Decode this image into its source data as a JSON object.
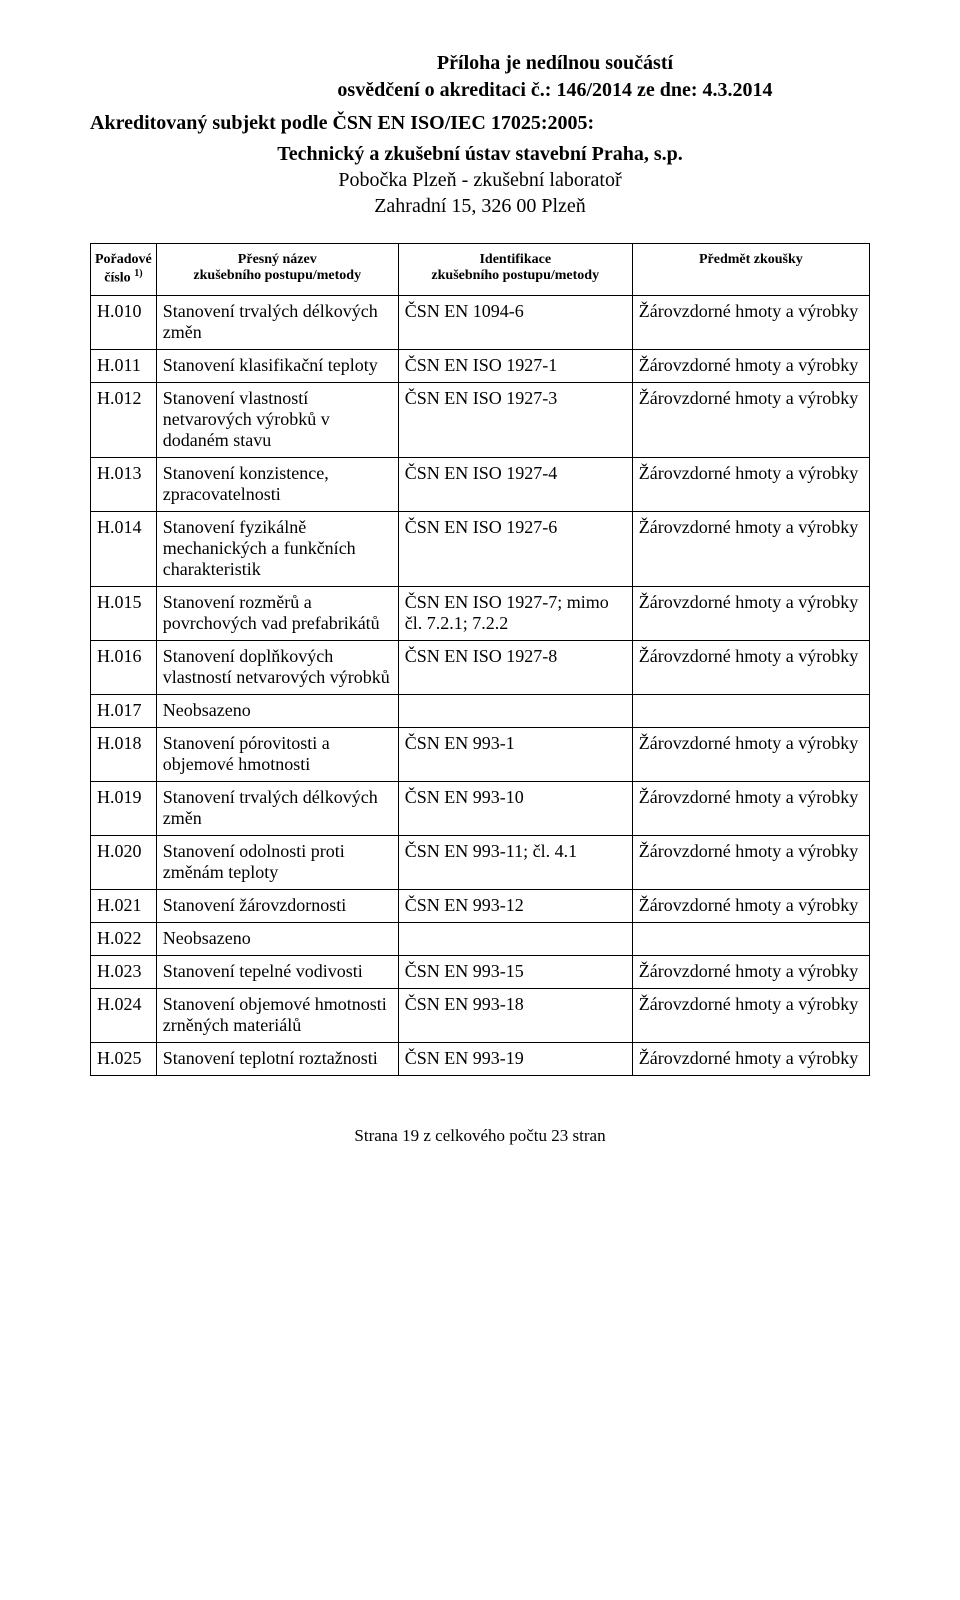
{
  "header": {
    "line1": "Příloha je nedílnou součástí",
    "line2": "osvědčení o akreditaci č.: 146/2014  ze dne: 4.3.2014"
  },
  "accredited_subject": "Akreditovaný subjekt podle ČSN EN ISO/IEC 17025:2005:",
  "sub_header": {
    "line1": "Technický a zkušební ústav stavební Praha, s.p.",
    "line2": "Pobočka Plzeň - zkušební laboratoř",
    "line3": "Zahradní 15, 326 00 Plzeň"
  },
  "columns": {
    "c1a": "Pořadové",
    "c1b": "číslo",
    "c1sup": "1)",
    "c2a": "Přesný název",
    "c2b": "zkušebního postupu/metody",
    "c3a": "Identifikace",
    "c3b": "zkušebního postupu/metody",
    "c4": "Předmět zkoušky"
  },
  "rows": [
    {
      "num": "H.010",
      "name": "Stanovení trvalých délkových změn",
      "ident": "ČSN EN 1094-6",
      "subject": "Žárovzdorné hmoty a výrobky"
    },
    {
      "num": "H.011",
      "name": "Stanovení klasifikační teploty",
      "ident": "ČSN EN ISO 1927-1",
      "subject": "Žárovzdorné hmoty a výrobky"
    },
    {
      "num": "H.012",
      "name": "Stanovení vlastností netvarových výrobků v dodaném stavu",
      "ident": "ČSN EN ISO 1927-3",
      "subject": "Žárovzdorné hmoty a výrobky"
    },
    {
      "num": "H.013",
      "name": "Stanovení konzistence, zpracovatelnosti",
      "ident": "ČSN EN ISO 1927-4",
      "subject": "Žárovzdorné hmoty a výrobky"
    },
    {
      "num": "H.014",
      "name": "Stanovení fyzikálně mechanických a funkčních charakteristik",
      "ident": "ČSN EN ISO 1927-6",
      "subject": "Žárovzdorné hmoty a výrobky"
    },
    {
      "num": "H.015",
      "name": "Stanovení rozměrů a povrchových vad prefabrikátů",
      "ident": "ČSN EN ISO 1927-7; mimo čl. 7.2.1; 7.2.2",
      "subject": "Žárovzdorné hmoty a výrobky"
    },
    {
      "num": "H.016",
      "name": "Stanovení doplňkových vlastností netvarových výrobků",
      "ident": "ČSN EN ISO 1927-8",
      "subject": "Žárovzdorné hmoty a výrobky"
    },
    {
      "num": "H.017",
      "name": "Neobsazeno",
      "ident": "",
      "subject": ""
    },
    {
      "num": "H.018",
      "name": "Stanovení pórovitosti a objemové hmotnosti",
      "ident": "ČSN EN 993-1",
      "subject": "Žárovzdorné hmoty a výrobky"
    },
    {
      "num": "H.019",
      "name": "Stanovení trvalých délkových změn",
      "ident": "ČSN EN 993-10",
      "subject": "Žárovzdorné hmoty a výrobky"
    },
    {
      "num": "H.020",
      "name": "Stanovení odolnosti proti změnám teploty",
      "ident": "ČSN EN 993-11; čl. 4.1",
      "subject": "Žárovzdorné hmoty a výrobky"
    },
    {
      "num": "H.021",
      "name": "Stanovení žárovzdornosti",
      "ident": "ČSN EN 993-12",
      "subject": "Žárovzdorné hmoty a výrobky"
    },
    {
      "num": "H.022",
      "name": "Neobsazeno",
      "ident": "",
      "subject": ""
    },
    {
      "num": "H.023",
      "name": "Stanovení tepelné vodivosti",
      "ident": "ČSN EN 993-15",
      "subject": "Žárovzdorné hmoty a výrobky"
    },
    {
      "num": "H.024",
      "name": "Stanovení objemové hmotnosti zrněných materiálů",
      "ident": "ČSN EN 993-18",
      "subject": "Žárovzdorné hmoty a výrobky"
    },
    {
      "num": "H.025",
      "name": "Stanovení teplotní roztažnosti",
      "ident": "ČSN EN 993-19",
      "subject": "Žárovzdorné hmoty a výrobky"
    }
  ],
  "footer": "Strana 19 z celkového počtu 23 stran"
}
